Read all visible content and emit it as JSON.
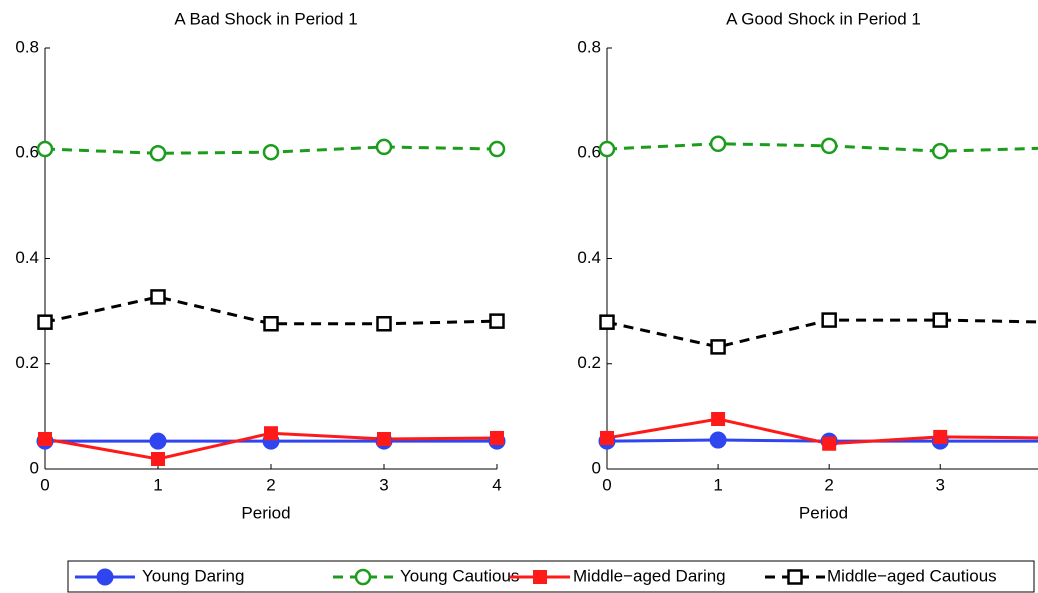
{
  "chart_data": [
    {
      "type": "line",
      "title": "A Bad Shock in Period 1",
      "xlabel": "Period",
      "x": [
        0,
        1,
        2,
        3,
        4
      ],
      "xlim": [
        0,
        4
      ],
      "xticks": [
        0,
        1,
        2,
        3,
        4
      ],
      "ylim": [
        0,
        0.8
      ],
      "yticks": [
        0,
        0.2,
        0.4,
        0.6,
        0.8
      ],
      "legend": "bottom",
      "series": [
        {
          "name": "Young Daring",
          "color": "#2f45f0",
          "marker": "circle",
          "filled": true,
          "linestyle": "solid",
          "values": [
            0.053,
            0.053,
            0.053,
            0.053,
            0.053
          ]
        },
        {
          "name": "Young Cautious",
          "color": "#1c9c1c",
          "marker": "circle",
          "filled": false,
          "linestyle": "dashed",
          "values": [
            0.608,
            0.6,
            0.602,
            0.612,
            0.608
          ]
        },
        {
          "name": "Middle−aged Daring",
          "color": "#ff1a1a",
          "marker": "square",
          "filled": true,
          "linestyle": "solid",
          "values": [
            0.057,
            0.019,
            0.068,
            0.057,
            0.059
          ]
        },
        {
          "name": "Middle−aged Cautious",
          "color": "#000000",
          "marker": "square",
          "filled": false,
          "linestyle": "dashed",
          "values": [
            0.279,
            0.327,
            0.276,
            0.276,
            0.281
          ]
        }
      ]
    },
    {
      "type": "line",
      "title": "A Good Shock in Period 1",
      "xlabel": "Period",
      "x": [
        0,
        1,
        2,
        3,
        4
      ],
      "xlim": [
        0,
        3.88
      ],
      "xticks": [
        0,
        1,
        2,
        3
      ],
      "ylim": [
        0,
        0.8
      ],
      "yticks": [
        0,
        0.2,
        0.4,
        0.6,
        0.8
      ],
      "series": [
        {
          "color": "#2f45f0",
          "marker": "circle",
          "filled": true,
          "linestyle": "solid",
          "values": [
            0.053,
            0.055,
            0.053,
            0.053,
            0.053
          ]
        },
        {
          "color": "#1c9c1c",
          "marker": "circle",
          "filled": false,
          "linestyle": "dashed",
          "values": [
            0.608,
            0.618,
            0.614,
            0.604,
            0.61
          ]
        },
        {
          "color": "#ff1a1a",
          "marker": "square",
          "filled": true,
          "linestyle": "solid",
          "values": [
            0.059,
            0.095,
            0.048,
            0.061,
            0.059
          ]
        },
        {
          "color": "#000000",
          "marker": "square",
          "filled": false,
          "linestyle": "dashed",
          "values": [
            0.279,
            0.232,
            0.283,
            0.283,
            0.279
          ]
        }
      ]
    }
  ]
}
